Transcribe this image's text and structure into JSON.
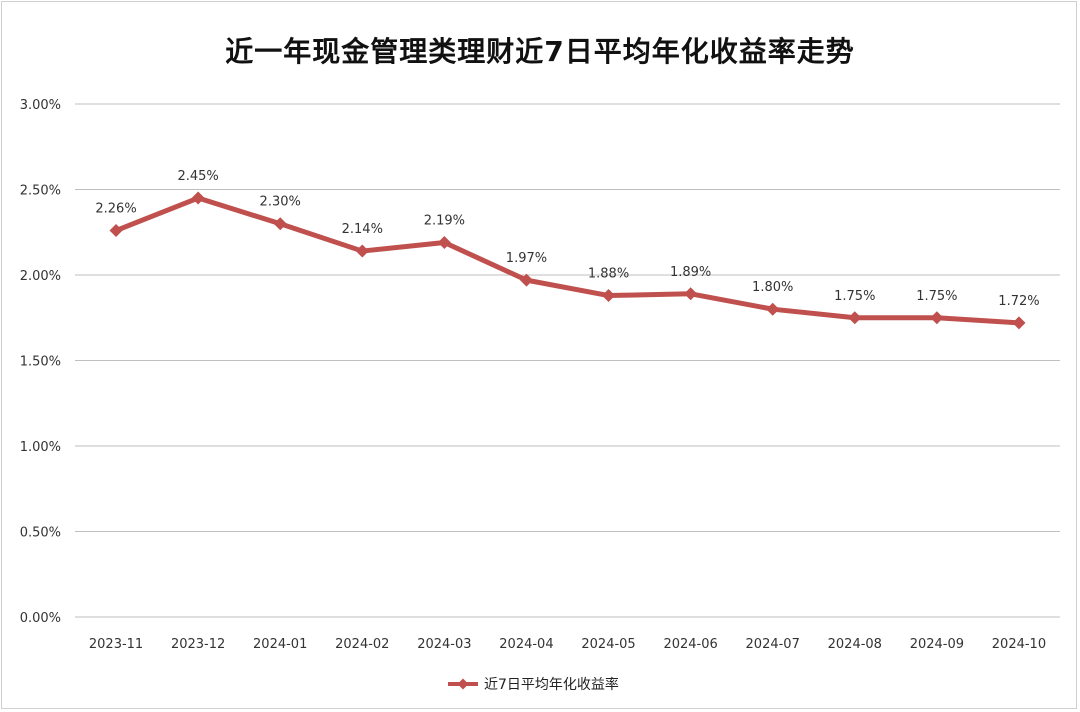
{
  "chart_data": {
    "type": "line",
    "title": "近一年现金管理类理财近7日平均年化收益率走势",
    "categories": [
      "2023-11",
      "2023-12",
      "2024-01",
      "2024-02",
      "2024-03",
      "2024-04",
      "2024-05",
      "2024-06",
      "2024-07",
      "2024-08",
      "2024-09",
      "2024-10"
    ],
    "series": [
      {
        "name": "近7日平均年化收益率",
        "values": [
          2.26,
          2.45,
          2.3,
          2.14,
          2.19,
          1.97,
          1.88,
          1.89,
          1.8,
          1.75,
          1.75,
          1.72
        ],
        "labels": [
          "2.26%",
          "2.45%",
          "2.30%",
          "2.14%",
          "2.19%",
          "1.97%",
          "1.88%",
          "1.89%",
          "1.80%",
          "1.75%",
          "1.75%",
          "1.72%"
        ],
        "color": "#c0504d",
        "marker": "diamond"
      }
    ],
    "ylim": [
      0,
      3.0
    ],
    "yticks": [
      0,
      0.5,
      1.0,
      1.5,
      2.0,
      2.5,
      3.0
    ],
    "ytick_labels": [
      "0.00%",
      "0.50%",
      "1.00%",
      "1.50%",
      "2.00%",
      "2.50%",
      "3.00%"
    ],
    "grid": true,
    "legend_position": "bottom",
    "xlabel": "",
    "ylabel": ""
  }
}
